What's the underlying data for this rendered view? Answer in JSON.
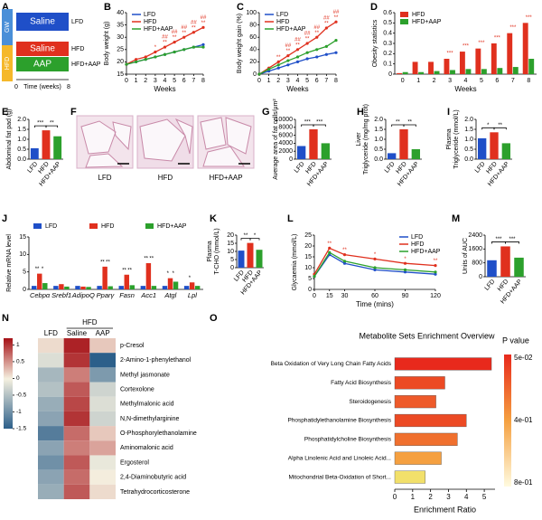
{
  "panel_labels": [
    "A",
    "B",
    "C",
    "D",
    "E",
    "F",
    "G",
    "H",
    "I",
    "J",
    "K",
    "L",
    "M",
    "N",
    "O"
  ],
  "schematic": {
    "gw": "GW",
    "hfd": "HFD",
    "saline1": "Saline",
    "lfd": "LFD",
    "saline2": "Saline",
    "hfd_group": "HFD",
    "aap": "AAP",
    "aap_group": "HFD+AAP",
    "t0": "0",
    "time": "Time (weeks)",
    "t8": "8"
  },
  "images": {
    "labels": [
      "LFD",
      "HFD",
      "HFD+AAP"
    ]
  },
  "chart_data": [
    {
      "type": "line",
      "ylabel": "Body weight (g)",
      "xlabel": "Weeks",
      "x": [
        0,
        1,
        2,
        3,
        4,
        5,
        6,
        7,
        8
      ],
      "xlim": [
        0,
        8
      ],
      "xticks": [
        0,
        1,
        2,
        3,
        4,
        5,
        6,
        7,
        8
      ],
      "ylim": [
        15,
        40
      ],
      "yticks": [
        15,
        20,
        25,
        30,
        35,
        40
      ],
      "legend": "top-left",
      "series": [
        {
          "name": "LFD",
          "color": "#1f4fc8",
          "values": [
            19,
            20,
            21,
            22,
            23,
            24,
            25,
            26,
            27
          ]
        },
        {
          "name": "HFD",
          "color": "#e0301e",
          "values": [
            19,
            21,
            22,
            24,
            26,
            28,
            30,
            32,
            34
          ]
        },
        {
          "name": "HFD+AAP",
          "color": "#2ca02c",
          "values": [
            19,
            20,
            21,
            22,
            23,
            24,
            25,
            26,
            26
          ]
        }
      ],
      "significance": [
        [
          null,
          null,
          null,
          null,
          "##",
          "##",
          "##",
          "##",
          "##"
        ],
        [
          null,
          null,
          null,
          "*",
          "**",
          "**",
          "**",
          "**",
          "**"
        ]
      ]
    },
    {
      "type": "line",
      "ylabel": "Body weight gain (%)",
      "xlabel": "Weeks",
      "x": [
        0,
        1,
        2,
        3,
        4,
        5,
        6,
        7,
        8
      ],
      "xlim": [
        0,
        8
      ],
      "xticks": [
        0,
        1,
        2,
        3,
        4,
        5,
        6,
        7,
        8
      ],
      "ylim": [
        0,
        100
      ],
      "yticks": [
        0,
        20,
        40,
        60,
        80,
        100
      ],
      "legend": "top-left",
      "series": [
        {
          "name": "LFD",
          "color": "#1f4fc8",
          "values": [
            0,
            5,
            10,
            15,
            20,
            25,
            28,
            32,
            35
          ]
        },
        {
          "name": "HFD",
          "color": "#e0301e",
          "values": [
            0,
            10,
            20,
            30,
            40,
            50,
            60,
            75,
            85
          ]
        },
        {
          "name": "HFD+AAP",
          "color": "#2ca02c",
          "values": [
            0,
            8,
            15,
            22,
            28,
            35,
            40,
            45,
            55
          ]
        }
      ],
      "significance": [
        [
          null,
          null,
          null,
          "##",
          "##",
          "##",
          "##",
          "##",
          "##"
        ],
        [
          null,
          null,
          "**",
          "**",
          "**",
          "**",
          "**",
          "**",
          "**"
        ]
      ]
    },
    {
      "type": "grouped_bar",
      "ylabel": "Obesity statistics",
      "xlabel": "Weeks",
      "categories": [
        0,
        1,
        2,
        3,
        4,
        5,
        6,
        7,
        8
      ],
      "ylim": [
        0,
        0.6
      ],
      "yticks": [
        0,
        0.1,
        0.2,
        0.3,
        0.4,
        0.5,
        0.6
      ],
      "legend": "top-left",
      "series": [
        {
          "name": "HFD",
          "color": "#e0301e",
          "values": [
            0.01,
            0.12,
            0.12,
            0.15,
            0.22,
            0.25,
            0.3,
            0.4,
            0.5
          ]
        },
        {
          "name": "HFD+AAP",
          "color": "#2ca02c",
          "values": [
            0.02,
            0.02,
            0.03,
            0.04,
            0.05,
            0.05,
            0.06,
            0.07,
            0.15
          ]
        }
      ],
      "significance": [
        null,
        null,
        null,
        "***",
        "***",
        "***",
        "***",
        "***",
        "***"
      ]
    },
    {
      "type": "bar",
      "ylabel": [
        "Abdominal fat pad (g)"
      ],
      "categories": [
        "LFD",
        "HFD",
        "HFD+AAP"
      ],
      "values": [
        0.55,
        1.45,
        1.15
      ],
      "colors": [
        "#1f4fc8",
        "#e0301e",
        "#2ca02c"
      ],
      "ylim": [
        0,
        2
      ],
      "yticks": [
        {
          "value": 0,
          "label": "0.0"
        },
        {
          "value": 0.5,
          "label": "0.5"
        },
        {
          "value": 1,
          "label": "1.0"
        },
        {
          "value": 1.5,
          "label": "1.5"
        },
        {
          "value": 2,
          "label": "2.0"
        }
      ],
      "significance": [
        "***",
        "**"
      ]
    },
    {
      "type": "bar",
      "ylabel": [
        "Average area of fat cells/μm²"
      ],
      "categories": [
        "LFD",
        "HFD",
        "HFD+AAP"
      ],
      "values": [
        3300,
        7500,
        4000
      ],
      "colors": [
        "#1f4fc8",
        "#e0301e",
        "#2ca02c"
      ],
      "ylim": [
        0,
        10000
      ],
      "yticks": [
        0,
        2000,
        4000,
        6000,
        8000,
        10000
      ],
      "significance": [
        "***",
        "***"
      ]
    },
    {
      "type": "bar",
      "ylabel": [
        "Liver",
        "Triglyceride (mg/mg prot)"
      ],
      "categories": [
        "LFD",
        "HFD",
        "HFD+AAP"
      ],
      "values": [
        0.3,
        1.5,
        0.5
      ],
      "colors": [
        "#1f4fc8",
        "#e0301e",
        "#2ca02c"
      ],
      "ylim": [
        0,
        2
      ],
      "yticks": [
        {
          "value": 0,
          "label": "0.0"
        },
        {
          "value": 0.5,
          "label": "0.5"
        },
        {
          "value": 1,
          "label": "1.0"
        },
        {
          "value": 1.5,
          "label": "1.5"
        },
        {
          "value": 2,
          "label": "2.0"
        }
      ],
      "significance": [
        "**",
        "**"
      ]
    },
    {
      "type": "bar",
      "ylabel": [
        "Plasma",
        "Triglyceride (mmol/L)"
      ],
      "categories": [
        "LFD",
        "HFD",
        "HFD+AAP"
      ],
      "values": [
        1.05,
        1.35,
        0.8
      ],
      "colors": [
        "#1f4fc8",
        "#e0301e",
        "#2ca02c"
      ],
      "ylim": [
        0,
        2
      ],
      "yticks": [
        {
          "value": 0,
          "label": "0.0"
        },
        {
          "value": 0.5,
          "label": "0.5"
        },
        {
          "value": 1,
          "label": "1.0"
        },
        {
          "value": 1.5,
          "label": "1.5"
        },
        {
          "value": 2,
          "label": "2.0"
        }
      ],
      "significance": [
        "*",
        "**"
      ]
    },
    {
      "type": "grouped_bar",
      "ylabel": "Relative mRNA level",
      "categories": [
        "Cebpα",
        "Srebf1",
        "AdipoQ",
        "Pparγ",
        "Fasn",
        "Acc1",
        "Atgl",
        "Lpl"
      ],
      "ylim": [
        0,
        15
      ],
      "yticks": [
        0,
        5,
        10,
        15
      ],
      "legend": "top",
      "series": [
        {
          "name": "LFD",
          "color": "#1f4fc8",
          "values": [
            1,
            1,
            1,
            1,
            1,
            1,
            1,
            1
          ]
        },
        {
          "name": "HFD",
          "color": "#e0301e",
          "values": [
            4.5,
            1.5,
            0.8,
            6.5,
            4.2,
            7.5,
            3.2,
            2
          ]
        },
        {
          "name": "HFD+AAP",
          "color": "#2ca02c",
          "values": [
            1.8,
            0.8,
            0.7,
            0.9,
            1.2,
            1,
            2.2,
            1
          ]
        }
      ],
      "significance": [
        [
          "**",
          "*"
        ],
        null,
        null,
        [
          "**",
          "**"
        ],
        [
          "**",
          "**"
        ],
        [
          "**",
          "**"
        ],
        [
          "*",
          "*"
        ],
        [
          "*",
          null
        ]
      ]
    },
    {
      "type": "bar",
      "ylabel": [
        "Plasma",
        "T-CHO (mmol/L)"
      ],
      "categories": [
        "LFD",
        "HFD",
        "HFD+AAP"
      ],
      "values": [
        10.5,
        15.2,
        11
      ],
      "colors": [
        "#1f4fc8",
        "#e0301e",
        "#2ca02c"
      ],
      "ylim": [
        0,
        20
      ],
      "yticks": [
        0,
        5,
        10,
        15,
        20
      ],
      "significance": [
        "**",
        "*"
      ]
    },
    {
      "type": "line",
      "ylabel": "Glycaemia (mmol/L)",
      "xlabel": "Time (mins)",
      "x": [
        0,
        15,
        30,
        60,
        90,
        120
      ],
      "xlim": [
        0,
        120
      ],
      "xticks": [
        0,
        15,
        30,
        60,
        90,
        120
      ],
      "ylim": [
        0,
        25
      ],
      "yticks": [
        0,
        5,
        10,
        15,
        20,
        25
      ],
      "legend": "top-right",
      "series": [
        {
          "name": "LFD",
          "color": "#1f4fc8",
          "values": [
            6,
            16,
            12,
            9,
            8,
            7
          ]
        },
        {
          "name": "HFD",
          "color": "#e0301e",
          "values": [
            7,
            19,
            16,
            14,
            12,
            11
          ]
        },
        {
          "name": "HFD+AAP",
          "color": "#2ca02c",
          "values": [
            6,
            17,
            13,
            10,
            9,
            8
          ]
        }
      ],
      "significance": [
        [
          null,
          "**",
          "**",
          "*",
          "*",
          "**"
        ]
      ]
    },
    {
      "type": "bar",
      "ylabel": [
        "Units of AUC"
      ],
      "categories": [
        "LFD",
        "HFD",
        "HFD+AAP"
      ],
      "values": [
        950,
        1750,
        1100
      ],
      "colors": [
        "#1f4fc8",
        "#e0301e",
        "#2ca02c"
      ],
      "ylim": [
        0,
        2400
      ],
      "yticks": [
        0,
        800,
        1600,
        2400
      ],
      "significance": [
        "***",
        "***"
      ]
    },
    {
      "type": "heatmap",
      "columns": [
        "LFD",
        "Saline",
        "AAP"
      ],
      "group": "HFD",
      "rows": [
        "p-Cresol",
        "2-Amino-1-phenylethanol",
        "Methyl jasmonate",
        "Cortexolone",
        "Methylmalonic acid",
        "N,N-dimethylarginine",
        "O-Phosphorylethanolamine",
        "Aminomalonic acid",
        "Ergosterol",
        "2,4-Diaminobutyric acid",
        "Tetrahydrocorticosterone"
      ],
      "values": [
        [
          0.1,
          1.1,
          0.2
        ],
        [
          -0.2,
          1.0,
          -1.5
        ],
        [
          -0.6,
          0.6,
          -0.9
        ],
        [
          -0.5,
          0.8,
          -0.3
        ],
        [
          -0.7,
          0.9,
          -0.2
        ],
        [
          -0.8,
          1.0,
          -0.3
        ],
        [
          -1.2,
          0.7,
          0.2
        ],
        [
          -0.8,
          0.6,
          0.4
        ],
        [
          -1.0,
          0.8,
          -0.1
        ],
        [
          -0.8,
          0.7,
          0.0
        ],
        [
          -0.7,
          0.8,
          0.1
        ]
      ],
      "clim": [
        -1.5,
        1.2
      ],
      "cticks": [
        1,
        0.5,
        0,
        -0.5,
        -1,
        -1.5
      ]
    },
    {
      "type": "hbar",
      "title": "Metabolite Sets Enrichment Overview",
      "xlabel": "Enrichment Ratio",
      "categories": [
        "Beta Oxidation of Very Long Chain Fatty Acids",
        "Fatty Acid Biosynthesis",
        "Steroidogenesis",
        "Phosphatidylethanolamine Biosynthesis",
        "Phosphatidylcholine Biosynthesis",
        "Alpha Linolenic Acid and Linoleic Acid...",
        "Mitochondrial Beta-Oxidation of Short..."
      ],
      "values": [
        5.4,
        2.8,
        2.3,
        4.0,
        3.5,
        2.6,
        1.7
      ],
      "colors": [
        "#e8291c",
        "#ec4a24",
        "#ee5a2a",
        "#ec4a24",
        "#f0702e",
        "#f5a040",
        "#f2e06a"
      ],
      "xlim": [
        0,
        5.6
      ],
      "xticks": [
        0,
        1,
        2,
        3,
        4,
        5
      ],
      "colorbar": {
        "title": "P value",
        "labels": [
          "5e-02",
          "4e-01",
          "8e-01"
        ]
      }
    }
  ]
}
